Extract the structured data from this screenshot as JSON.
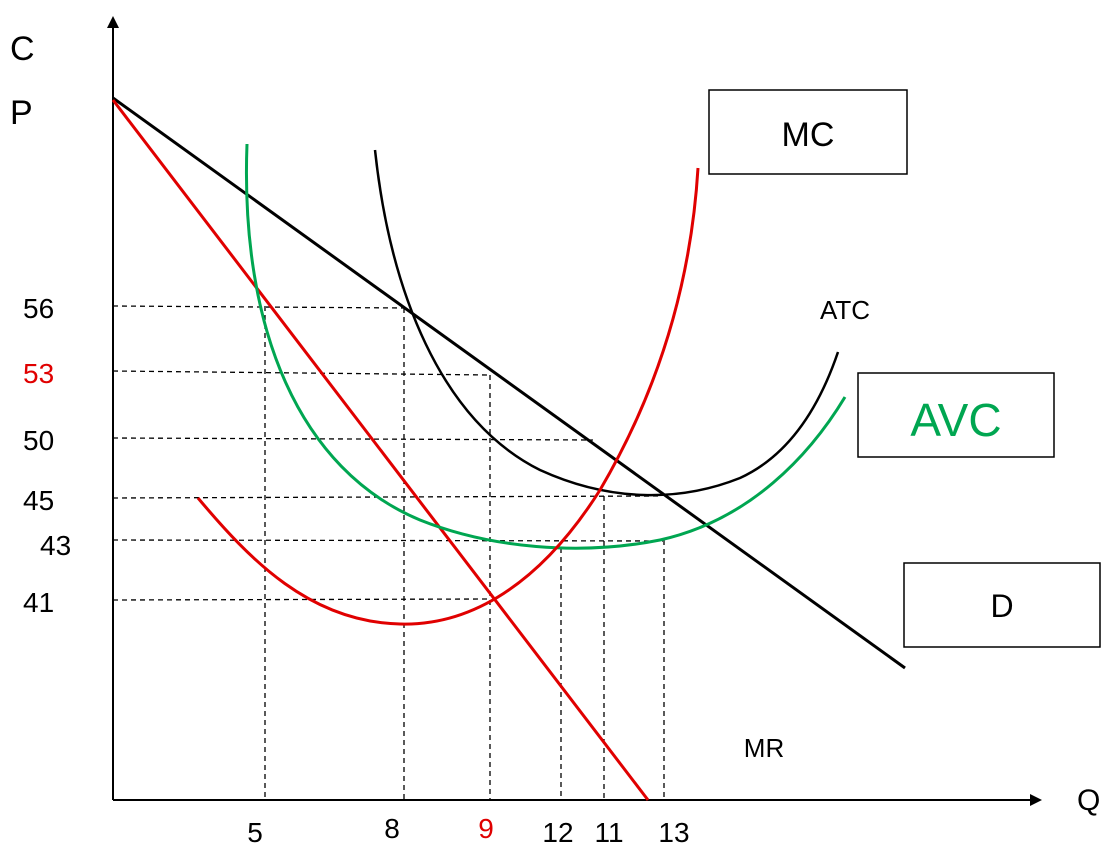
{
  "axes": {
    "y_label_top": "C",
    "y_label_bottom": "P",
    "x_label": "Q"
  },
  "y_ticks": [
    {
      "label": "56",
      "color": "#000000"
    },
    {
      "label": "53",
      "color": "#e00000"
    },
    {
      "label": "50",
      "color": "#000000"
    },
    {
      "label": "45",
      "color": "#000000"
    },
    {
      "label": "43",
      "color": "#000000"
    },
    {
      "label": "41",
      "color": "#000000"
    }
  ],
  "x_ticks": [
    {
      "label": "5",
      "color": "#000000"
    },
    {
      "label": "8",
      "color": "#000000"
    },
    {
      "label": "9",
      "color": "#e00000"
    },
    {
      "label": "12",
      "color": "#000000"
    },
    {
      "label": "11",
      "color": "#000000"
    },
    {
      "label": "13",
      "color": "#000000"
    }
  ],
  "curve_labels": {
    "mc": "MC",
    "atc": "ATC",
    "avc": "AVC",
    "d": "D",
    "mr": "MR"
  },
  "colors": {
    "mc": "#e00000",
    "mr": "#e00000",
    "d": "#000000",
    "atc": "#000000",
    "avc": "#00a651",
    "axis": "#000000",
    "guide": "#000000"
  }
}
